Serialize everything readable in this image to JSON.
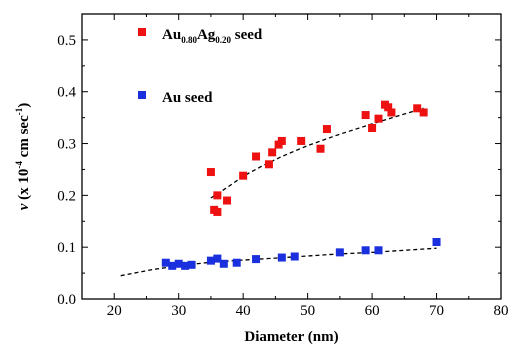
{
  "chart_data": {
    "type": "scatter",
    "title": "",
    "xlabel": "Diameter (nm)",
    "ylabel": {
      "var": "v",
      "pre": "(x 10",
      "exp": "-4",
      "post": " cm sec",
      "exp2": "-1",
      "close": ")"
    },
    "xlim": [
      15,
      80
    ],
    "ylim": [
      0.0,
      0.55
    ],
    "xticks": [
      "20",
      "30",
      "40",
      "50",
      "60",
      "70",
      "80"
    ],
    "yticks": [
      "0.0",
      "0.1",
      "0.2",
      "0.3",
      "0.4",
      "0.5"
    ],
    "legend_position": "inside-left",
    "series": [
      {
        "name": "Au0.80Ag0.20 seed",
        "legend": {
          "base1": "Au",
          "sub1": "0.80",
          "base2": "Ag",
          "sub2": "0.20",
          "tail": " seed"
        },
        "color": "#ee1111",
        "marker": "square",
        "x": [
          35.0,
          35.5,
          36.0,
          36.0,
          37.5,
          40.0,
          42.0,
          44.0,
          44.5,
          45.5,
          46.0,
          49.0,
          52.0,
          53.0,
          59.0,
          60.0,
          61.0,
          62.0,
          62.5,
          63.0,
          67.0,
          68.0
        ],
        "y": [
          0.245,
          0.172,
          0.168,
          0.2,
          0.19,
          0.238,
          0.275,
          0.26,
          0.283,
          0.298,
          0.305,
          0.305,
          0.29,
          0.328,
          0.355,
          0.33,
          0.348,
          0.375,
          0.37,
          0.36,
          0.368,
          0.36
        ]
      },
      {
        "name": "Au seed",
        "legend": {
          "base1": "Au seed",
          "sub1": "",
          "base2": "",
          "sub2": "",
          "tail": ""
        },
        "color": "#1a2fdd",
        "marker": "square",
        "x": [
          28.0,
          29.0,
          30.0,
          31.0,
          32.0,
          35.0,
          36.0,
          37.0,
          39.0,
          42.0,
          46.0,
          48.0,
          55.0,
          59.0,
          61.0,
          70.0
        ],
        "y": [
          0.07,
          0.064,
          0.068,
          0.064,
          0.066,
          0.074,
          0.078,
          0.068,
          0.07,
          0.077,
          0.08,
          0.082,
          0.09,
          0.094,
          0.094,
          0.11
        ]
      }
    ],
    "fits": [
      {
        "name": "alloy-fit",
        "style": "dashed",
        "x": [
          35.0,
          37.5,
          40,
          43,
          46,
          50,
          55,
          60,
          65,
          68
        ],
        "y": [
          0.195,
          0.215,
          0.237,
          0.257,
          0.275,
          0.296,
          0.318,
          0.338,
          0.357,
          0.368
        ]
      },
      {
        "name": "au-fit",
        "style": "dashed",
        "x": [
          21,
          26,
          30,
          35,
          40,
          45,
          50,
          55,
          60,
          65,
          70
        ],
        "y": [
          0.045,
          0.057,
          0.064,
          0.071,
          0.075,
          0.079,
          0.083,
          0.087,
          0.09,
          0.094,
          0.098
        ]
      }
    ]
  }
}
